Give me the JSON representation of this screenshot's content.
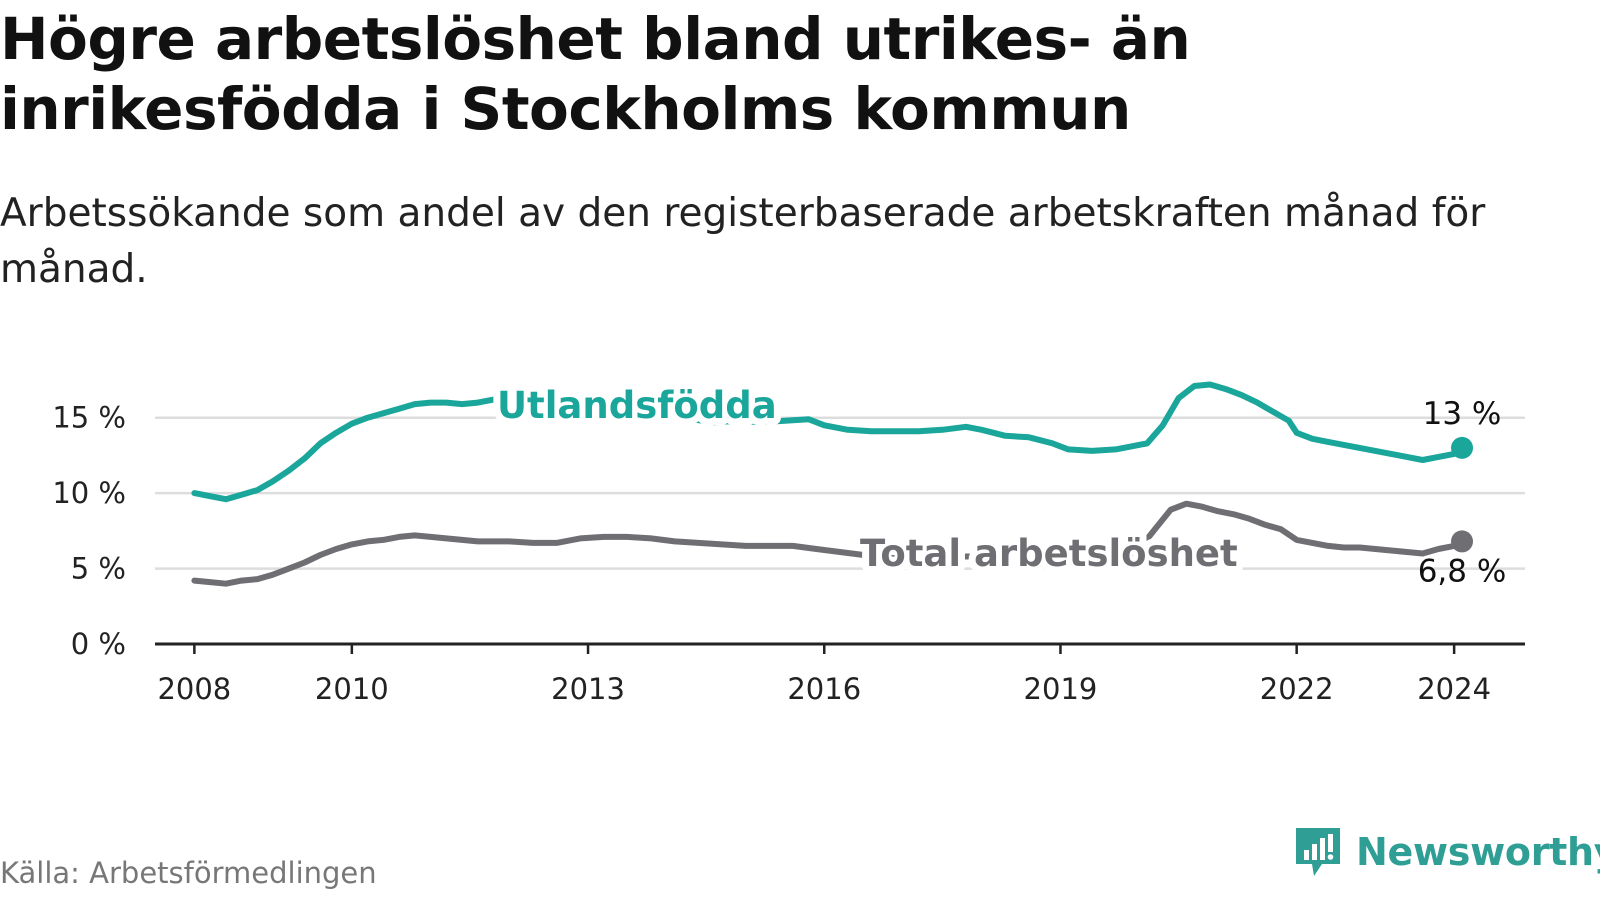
{
  "title": "Högre arbetslöshet bland utrikes- än inrikesfödda i Stockholms kommun",
  "subtitle": "Arbetssökande som andel av den registerbaserade arbetskraften månad för månad.",
  "source": "Källa: Arbetsförmedlingen",
  "brand": {
    "name": "Newsworthy",
    "icon": "newsworthy-logo-icon",
    "color": "#2f9e94"
  },
  "colors": {
    "foreign": "#1aa69b",
    "total": "#6f6e73",
    "grid": "#dddddd",
    "axis": "#222222"
  },
  "chart_data": {
    "type": "line",
    "title": "Högre arbetslöshet bland utrikes- än inrikesfödda i Stockholms kommun",
    "xlabel": "",
    "ylabel": "",
    "ylim": [
      0,
      17.5
    ],
    "xlim": [
      2007.5,
      2024.9
    ],
    "yticks": [
      {
        "value": 0,
        "label": "0 %"
      },
      {
        "value": 5,
        "label": "5 %"
      },
      {
        "value": 10,
        "label": "10 %"
      },
      {
        "value": 15,
        "label": "15 %"
      }
    ],
    "xticks": [
      {
        "value": 2008,
        "label": "2008"
      },
      {
        "value": 2010,
        "label": "2010"
      },
      {
        "value": 2013,
        "label": "2013"
      },
      {
        "value": 2016,
        "label": "2016"
      },
      {
        "value": 2019,
        "label": "2019"
      },
      {
        "value": 2022,
        "label": "2022"
      },
      {
        "value": 2024,
        "label": "2024"
      }
    ],
    "series": [
      {
        "name": "Utlandsfödda",
        "color": "#1aa69b",
        "end_label": "13 %",
        "points": [
          [
            2008.0,
            10.0
          ],
          [
            2008.2,
            9.8
          ],
          [
            2008.4,
            9.6
          ],
          [
            2008.6,
            9.9
          ],
          [
            2008.8,
            10.2
          ],
          [
            2009.0,
            10.8
          ],
          [
            2009.2,
            11.5
          ],
          [
            2009.4,
            12.3
          ],
          [
            2009.6,
            13.3
          ],
          [
            2009.8,
            14.0
          ],
          [
            2010.0,
            14.6
          ],
          [
            2010.2,
            15.0
          ],
          [
            2010.4,
            15.3
          ],
          [
            2010.6,
            15.6
          ],
          [
            2010.8,
            15.9
          ],
          [
            2011.0,
            16.0
          ],
          [
            2011.2,
            16.0
          ],
          [
            2011.4,
            15.9
          ],
          [
            2011.6,
            16.0
          ],
          [
            2011.8,
            16.2
          ],
          [
            2012.0,
            16.0
          ],
          [
            2012.3,
            15.8
          ],
          [
            2012.6,
            15.7
          ],
          [
            2013.0,
            15.6
          ],
          [
            2013.3,
            15.4
          ],
          [
            2013.6,
            15.2
          ],
          [
            2014.0,
            15.0
          ],
          [
            2014.3,
            14.9
          ],
          [
            2014.6,
            14.7
          ],
          [
            2014.9,
            14.8
          ],
          [
            2015.2,
            14.7
          ],
          [
            2015.5,
            14.8
          ],
          [
            2015.8,
            14.9
          ],
          [
            2016.0,
            14.5
          ],
          [
            2016.3,
            14.2
          ],
          [
            2016.6,
            14.1
          ],
          [
            2016.9,
            14.1
          ],
          [
            2017.2,
            14.1
          ],
          [
            2017.5,
            14.2
          ],
          [
            2017.8,
            14.4
          ],
          [
            2018.0,
            14.2
          ],
          [
            2018.3,
            13.8
          ],
          [
            2018.6,
            13.7
          ],
          [
            2018.9,
            13.3
          ],
          [
            2019.1,
            12.9
          ],
          [
            2019.4,
            12.8
          ],
          [
            2019.7,
            12.9
          ],
          [
            2019.9,
            13.1
          ],
          [
            2020.1,
            13.3
          ],
          [
            2020.3,
            14.5
          ],
          [
            2020.5,
            16.3
          ],
          [
            2020.7,
            17.1
          ],
          [
            2020.9,
            17.2
          ],
          [
            2021.1,
            16.9
          ],
          [
            2021.3,
            16.5
          ],
          [
            2021.5,
            16.0
          ],
          [
            2021.7,
            15.4
          ],
          [
            2021.9,
            14.8
          ],
          [
            2022.0,
            14.0
          ],
          [
            2022.2,
            13.6
          ],
          [
            2022.4,
            13.4
          ],
          [
            2022.6,
            13.2
          ],
          [
            2022.8,
            13.0
          ],
          [
            2023.0,
            12.8
          ],
          [
            2023.2,
            12.6
          ],
          [
            2023.4,
            12.4
          ],
          [
            2023.6,
            12.2
          ],
          [
            2023.8,
            12.4
          ],
          [
            2024.0,
            12.6
          ],
          [
            2024.1,
            13.0
          ]
        ]
      },
      {
        "name": "Total arbetslöshet",
        "color": "#6f6e73",
        "end_label": "6,8 %",
        "points": [
          [
            2008.0,
            4.2
          ],
          [
            2008.2,
            4.1
          ],
          [
            2008.4,
            4.0
          ],
          [
            2008.6,
            4.2
          ],
          [
            2008.8,
            4.3
          ],
          [
            2009.0,
            4.6
          ],
          [
            2009.2,
            5.0
          ],
          [
            2009.4,
            5.4
          ],
          [
            2009.6,
            5.9
          ],
          [
            2009.8,
            6.3
          ],
          [
            2010.0,
            6.6
          ],
          [
            2010.2,
            6.8
          ],
          [
            2010.4,
            6.9
          ],
          [
            2010.6,
            7.1
          ],
          [
            2010.8,
            7.2
          ],
          [
            2011.0,
            7.1
          ],
          [
            2011.2,
            7.0
          ],
          [
            2011.4,
            6.9
          ],
          [
            2011.6,
            6.8
          ],
          [
            2011.8,
            6.8
          ],
          [
            2012.0,
            6.8
          ],
          [
            2012.3,
            6.7
          ],
          [
            2012.6,
            6.7
          ],
          [
            2012.9,
            7.0
          ],
          [
            2013.2,
            7.1
          ],
          [
            2013.5,
            7.1
          ],
          [
            2013.8,
            7.0
          ],
          [
            2014.1,
            6.8
          ],
          [
            2014.4,
            6.7
          ],
          [
            2014.7,
            6.6
          ],
          [
            2015.0,
            6.5
          ],
          [
            2015.3,
            6.5
          ],
          [
            2015.6,
            6.5
          ],
          [
            2015.9,
            6.3
          ],
          [
            2016.2,
            6.1
          ],
          [
            2016.5,
            5.9
          ],
          [
            2016.8,
            5.8
          ],
          [
            2017.1,
            5.8
          ],
          [
            2017.4,
            5.7
          ],
          [
            2017.7,
            5.8
          ],
          [
            2018.0,
            5.8
          ],
          [
            2018.3,
            5.6
          ],
          [
            2018.6,
            5.5
          ],
          [
            2018.9,
            5.4
          ],
          [
            2019.2,
            5.4
          ],
          [
            2019.5,
            5.5
          ],
          [
            2019.8,
            5.8
          ],
          [
            2020.0,
            6.3
          ],
          [
            2020.2,
            7.6
          ],
          [
            2020.4,
            8.9
          ],
          [
            2020.6,
            9.3
          ],
          [
            2020.8,
            9.1
          ],
          [
            2021.0,
            8.8
          ],
          [
            2021.2,
            8.6
          ],
          [
            2021.4,
            8.3
          ],
          [
            2021.6,
            7.9
          ],
          [
            2021.8,
            7.6
          ],
          [
            2022.0,
            6.9
          ],
          [
            2022.2,
            6.7
          ],
          [
            2022.4,
            6.5
          ],
          [
            2022.6,
            6.4
          ],
          [
            2022.8,
            6.4
          ],
          [
            2023.0,
            6.3
          ],
          [
            2023.2,
            6.2
          ],
          [
            2023.4,
            6.1
          ],
          [
            2023.6,
            6.0
          ],
          [
            2023.8,
            6.3
          ],
          [
            2024.0,
            6.5
          ],
          [
            2024.1,
            6.8
          ]
        ]
      }
    ]
  }
}
